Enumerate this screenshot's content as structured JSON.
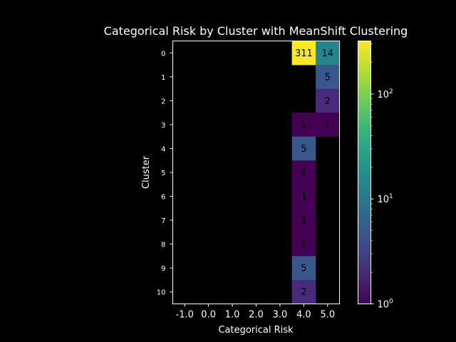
{
  "chart_data": {
    "type": "heatmap",
    "title": "Categorical Risk by Cluster with MeanShift Clustering",
    "xlabel": "Categorical Risk",
    "ylabel": "Cluster",
    "x_ticks": [
      "-1.0",
      "0.0",
      "1.0",
      "2.0",
      "3.0",
      "4.0",
      "5.0"
    ],
    "y_ticks": [
      "0",
      "1",
      "2",
      "3",
      "4",
      "5",
      "6",
      "7",
      "8",
      "9",
      "10"
    ],
    "colormap": "viridis",
    "color_scale": "log",
    "colorbar": {
      "range": [
        1,
        320
      ],
      "ticks": [
        {
          "value": 1,
          "base": "10",
          "exp": "0"
        },
        {
          "value": 10,
          "base": "10",
          "exp": "1"
        },
        {
          "value": 100,
          "base": "10",
          "exp": "2"
        }
      ]
    },
    "cells": [
      {
        "cluster": 0,
        "risk": 4.0,
        "value": 311
      },
      {
        "cluster": 0,
        "risk": 5.0,
        "value": 14
      },
      {
        "cluster": 1,
        "risk": 5.0,
        "value": 5
      },
      {
        "cluster": 2,
        "risk": 5.0,
        "value": 2
      },
      {
        "cluster": 3,
        "risk": 4.0,
        "value": 1
      },
      {
        "cluster": 3,
        "risk": 5.0,
        "value": 1
      },
      {
        "cluster": 4,
        "risk": 4.0,
        "value": 5
      },
      {
        "cluster": 5,
        "risk": 4.0,
        "value": 1
      },
      {
        "cluster": 6,
        "risk": 4.0,
        "value": 1
      },
      {
        "cluster": 7,
        "risk": 4.0,
        "value": 1
      },
      {
        "cluster": 8,
        "risk": 4.0,
        "value": 1
      },
      {
        "cluster": 9,
        "risk": 4.0,
        "value": 5
      },
      {
        "cluster": 10,
        "risk": 4.0,
        "value": 2
      }
    ]
  }
}
